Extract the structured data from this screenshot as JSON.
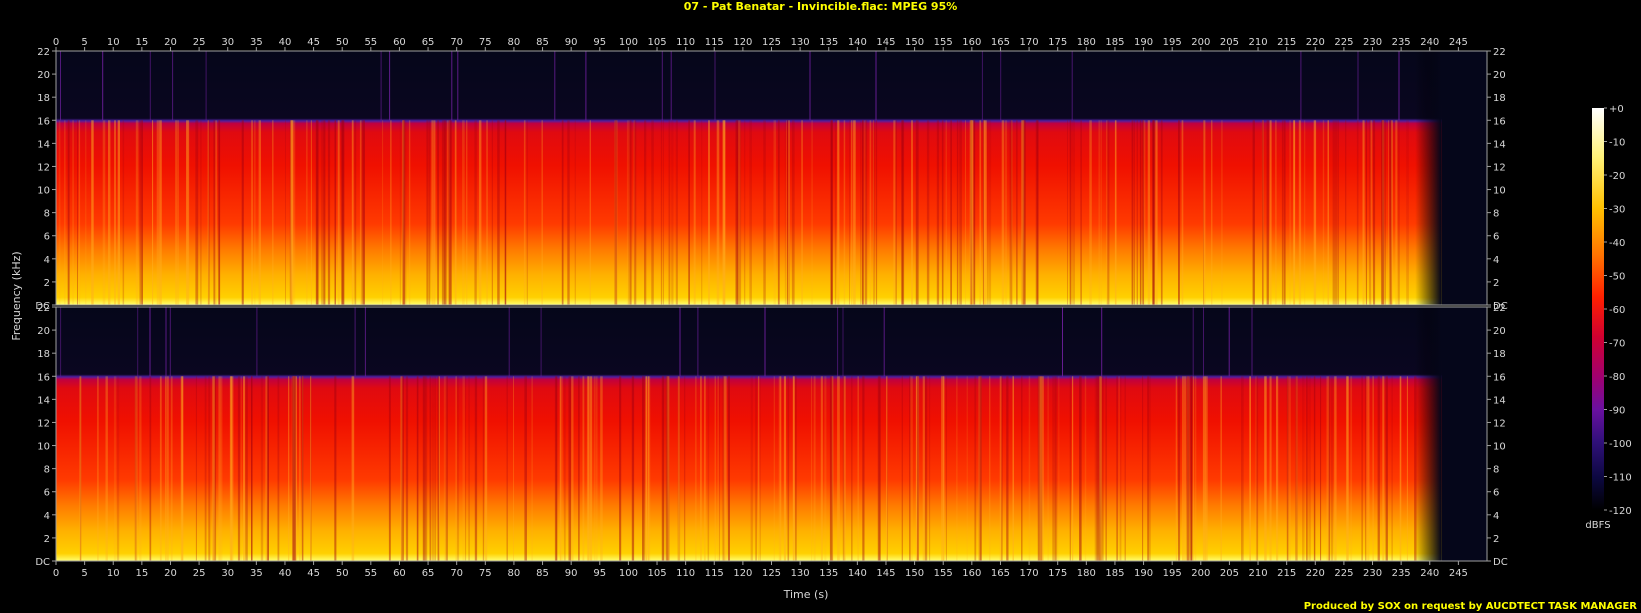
{
  "title": "07 - Pat Benatar - Invincible.flac: MPEG 95%",
  "credit": "Produced by SOX on request by AUCDTECT TASK MANAGER",
  "colors": {
    "background": "#000000",
    "axis": "#a0a0a0",
    "title": "#ffff00",
    "label": "#d8d8d8",
    "palette": [
      "#ffffff",
      "#fff7a0",
      "#ffd000",
      "#ff8000",
      "#ff2000",
      "#d00020",
      "#a00060",
      "#6a10a0",
      "#3a0a7a",
      "#10083a",
      "#04061a"
    ]
  },
  "chart_data": {
    "type": "heatmap",
    "title": "07 - Pat Benatar - Invincible.flac: MPEG 95%",
    "xlabel": "Time (s)",
    "ylabel": "Frequency (kHz)",
    "xlim": [
      0,
      250
    ],
    "ylim": [
      0,
      22
    ],
    "x_ticks": [
      0,
      5,
      10,
      15,
      20,
      25,
      30,
      35,
      40,
      45,
      50,
      55,
      60,
      65,
      70,
      75,
      80,
      85,
      90,
      95,
      100,
      105,
      110,
      115,
      120,
      125,
      130,
      135,
      140,
      145,
      150,
      155,
      160,
      165,
      170,
      175,
      180,
      185,
      190,
      195,
      200,
      205,
      210,
      215,
      220,
      225,
      230,
      235,
      240,
      245
    ],
    "y_tick_labels": [
      "DC",
      "2",
      "4",
      "6",
      "8",
      "10",
      "12",
      "14",
      "16",
      "18",
      "20",
      "22"
    ],
    "y_tick_values": [
      0,
      2,
      4,
      6,
      8,
      10,
      12,
      14,
      16,
      18,
      20,
      22
    ],
    "channels": 2,
    "track_end_s": 242,
    "lowpass_cutoff_khz": 16,
    "colorbar": {
      "label": "dBFS",
      "tick_labels": [
        "+0",
        "-10",
        "-20",
        "-30",
        "-40",
        "-50",
        "-60",
        "-70",
        "-80",
        "-90",
        "-100",
        "-110",
        "-120"
      ],
      "range": [
        -120,
        0
      ]
    }
  }
}
